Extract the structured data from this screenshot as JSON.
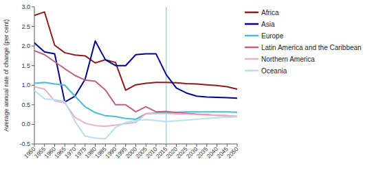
{
  "chart_data": {
    "type": "line",
    "ylabel": "Average annual rate of change (per cent)",
    "x": [
      1950,
      1955,
      1960,
      1965,
      1970,
      1975,
      1980,
      1985,
      1990,
      1995,
      2000,
      2005,
      2010,
      2015,
      2020,
      2025,
      2030,
      2035,
      2040,
      2045,
      2050
    ],
    "xlim": [
      1950,
      2050
    ],
    "ylim": [
      -0.5,
      3.0
    ],
    "xticks": [
      1950,
      1955,
      1960,
      1965,
      1970,
      1975,
      1980,
      1985,
      1990,
      1995,
      2000,
      2005,
      2010,
      2015,
      2020,
      2025,
      2030,
      2035,
      2040,
      2045,
      2050
    ],
    "yticks": [
      -0.5,
      {
        "value": 0.0,
        "label": "0.0"
      },
      0.5,
      {
        "value": 1.0,
        "label": "1.0"
      },
      1.5,
      {
        "value": 2.0,
        "label": "2.0"
      },
      2.5,
      {
        "value": 3.0,
        "label": "3.0"
      }
    ],
    "vlines": [
      {
        "x": 2015,
        "color": "#7bbdd6"
      }
    ],
    "grid": false,
    "legend": "right",
    "series": [
      {
        "name": "Africa",
        "color": "#8b1a1a",
        "values": [
          2.78,
          2.87,
          2.02,
          1.83,
          1.77,
          1.75,
          1.57,
          1.65,
          1.58,
          0.87,
          1.01,
          1.05,
          1.07,
          1.07,
          1.06,
          1.04,
          1.03,
          1.01,
          0.99,
          0.96,
          0.9
        ]
      },
      {
        "name": "Asia",
        "color": "#00008b",
        "values": [
          2.08,
          1.85,
          1.8,
          0.57,
          0.72,
          1.15,
          2.13,
          1.65,
          1.5,
          1.5,
          1.78,
          1.8,
          1.8,
          1.27,
          0.93,
          0.8,
          0.72,
          0.7,
          0.69,
          0.68,
          0.67
        ]
      },
      {
        "name": "Europe",
        "color": "#4ab8d8",
        "values": [
          1.05,
          1.07,
          1.03,
          1.0,
          0.72,
          0.45,
          0.3,
          0.22,
          0.2,
          0.15,
          0.13,
          0.27,
          0.29,
          0.3,
          0.31,
          0.32,
          0.32,
          0.32,
          0.32,
          0.32,
          0.31
        ]
      },
      {
        "name": "Latin America and the Caribbean",
        "color": "#c06080",
        "values": [
          1.88,
          1.78,
          1.6,
          1.42,
          1.25,
          1.13,
          1.1,
          0.88,
          0.5,
          0.5,
          0.32,
          0.45,
          0.32,
          0.33,
          0.3,
          0.28,
          0.26,
          0.25,
          0.23,
          0.22,
          0.2
        ]
      },
      {
        "name": "Northern America",
        "color": "#e8b0c8",
        "values": [
          0.96,
          0.9,
          0.6,
          0.55,
          0.18,
          0.03,
          -0.03,
          -0.05,
          -0.02,
          0.02,
          0.05,
          0.28,
          0.28,
          0.28,
          0.27,
          0.26,
          0.25,
          0.24,
          0.23,
          0.22,
          0.21
        ]
      },
      {
        "name": "Oceania",
        "color": "#b8e0ec",
        "values": [
          0.87,
          0.65,
          0.63,
          0.58,
          0.08,
          -0.3,
          -0.35,
          -0.37,
          -0.08,
          0.05,
          0.1,
          0.12,
          0.1,
          0.07,
          0.09,
          0.11,
          0.13,
          0.15,
          0.17,
          0.18,
          0.19
        ]
      }
    ]
  }
}
